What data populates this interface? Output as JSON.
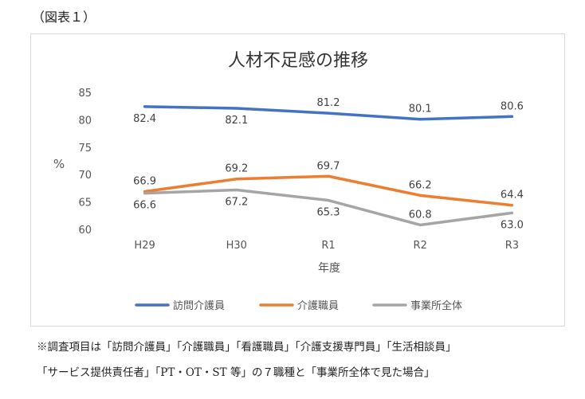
{
  "figure_label": "（図表１）",
  "notes": [
    "※調査項目は「訪問介護員」「介護職員」「看護職員」「介護支援専門員」「生活相談員」",
    "「サービス提供責任者」「PT・OT・ST 等」の７職種と「事業所全体で見た場合」"
  ],
  "chart_data": {
    "type": "line",
    "title": "人材不足感の推移",
    "xlabel": "年度",
    "ylabel": "%",
    "categories": [
      "H29",
      "H30",
      "R1",
      "R2",
      "R3"
    ],
    "ylim": [
      60,
      85
    ],
    "yticks": [
      60,
      65,
      70,
      75,
      80,
      85
    ],
    "grid": false,
    "legend_position": "bottom",
    "series": [
      {
        "name": "訪問介護員",
        "values": [
          82.4,
          82.1,
          81.2,
          80.1,
          80.6
        ],
        "labels": [
          "82.4",
          "82.1",
          "81.2",
          "80.1",
          "80.6"
        ],
        "color": "#4472c4"
      },
      {
        "name": "介護職員",
        "values": [
          66.9,
          69.2,
          69.7,
          66.2,
          64.4
        ],
        "labels": [
          "66.9",
          "69.2",
          "69.7",
          "66.2",
          "64.4"
        ],
        "color": "#ed7d31"
      },
      {
        "name": "事業所全体",
        "values": [
          66.6,
          67.2,
          65.3,
          60.8,
          63.0
        ],
        "labels": [
          "66.6",
          "67.2",
          "65.3",
          "60.8",
          "63.0"
        ],
        "color": "#a5a5a5"
      }
    ]
  }
}
